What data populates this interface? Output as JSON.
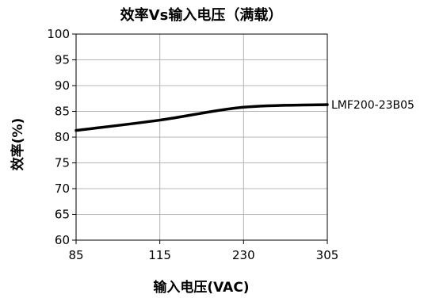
{
  "chart_data": {
    "type": "line",
    "title": "效率Vs输入电压（满载）",
    "xlabel": "输入电压(VAC)",
    "ylabel": "效率(%)",
    "categories": [
      "85",
      "115",
      "230",
      "305"
    ],
    "ylim": [
      60,
      100
    ],
    "yticks": [
      "60",
      "65",
      "70",
      "75",
      "80",
      "85",
      "90",
      "95",
      "100"
    ],
    "grid": true,
    "series": [
      {
        "name": "LMF200-23B05",
        "values": [
          81.3,
          83.3,
          85.8,
          86.3
        ],
        "color": "#000000"
      }
    ]
  }
}
